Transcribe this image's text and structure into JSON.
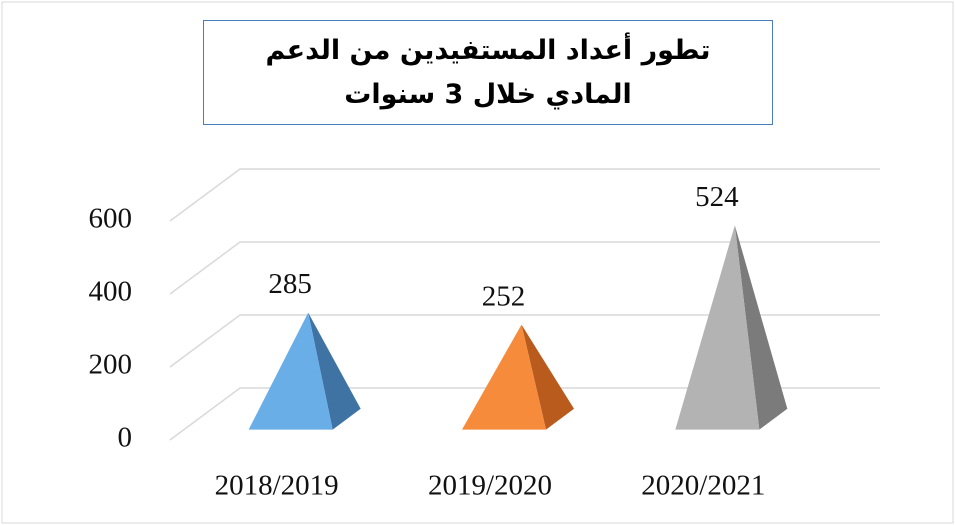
{
  "chart_data": {
    "type": "pyramid",
    "title": "تطور أعداد المستفيدين من الدعم المادي خلال 3 سنوات",
    "categories": [
      "2018/2019",
      "2019/2020",
      "2020/2021"
    ],
    "values": [
      285,
      252,
      524
    ],
    "colors": [
      [
        "#6aaee8",
        "#3f73a3"
      ],
      [
        "#f68b3c",
        "#b85b1d"
      ],
      [
        "#b3b3b3",
        "#7b7b7b"
      ]
    ],
    "ylim": [
      0,
      600
    ],
    "yticks": [
      0,
      200,
      400,
      600
    ],
    "grid": true
  }
}
